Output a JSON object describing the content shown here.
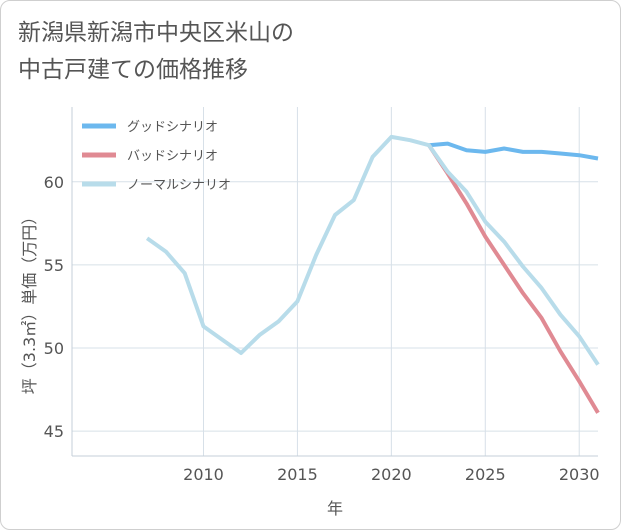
{
  "title_line1": "新潟県新潟市中央区米山の",
  "title_line2": "中古戸建ての価格推移",
  "chart_data": {
    "type": "line",
    "title": "新潟県新潟市中央区米山の中古戸建ての価格推移",
    "xlabel": "年",
    "ylabel": "坪（3.3㎡）単価（万円）",
    "xlim": [
      2003,
      2031
    ],
    "ylim": [
      43.5,
      64.5
    ],
    "xticks": [
      2010,
      2015,
      2020,
      2025,
      2030
    ],
    "yticks": [
      45,
      50,
      55,
      60
    ],
    "legend_position": "top-left",
    "series": [
      {
        "name": "グッドシナリオ",
        "color": "#6cb8ee",
        "x": [
          2022,
          2023,
          2024,
          2025,
          2026,
          2027,
          2028,
          2029,
          2030,
          2031
        ],
        "values": [
          62.2,
          62.3,
          61.9,
          61.8,
          62.0,
          61.8,
          61.8,
          61.7,
          61.6,
          61.4
        ]
      },
      {
        "name": "バッドシナリオ",
        "color": "#e08a93",
        "x": [
          2022,
          2023,
          2024,
          2025,
          2026,
          2027,
          2028,
          2029,
          2030,
          2031
        ],
        "values": [
          62.2,
          60.5,
          58.7,
          56.7,
          55.0,
          53.3,
          51.8,
          49.8,
          48.0,
          46.1
        ]
      },
      {
        "name": "ノーマルシナリオ",
        "color": "#b8dcea",
        "x": [
          2007,
          2008,
          2009,
          2010,
          2011,
          2012,
          2013,
          2014,
          2015,
          2016,
          2017,
          2018,
          2019,
          2020,
          2021,
          2022,
          2023,
          2024,
          2025,
          2026,
          2027,
          2028,
          2029,
          2030,
          2031
        ],
        "values": [
          56.6,
          55.8,
          54.5,
          51.3,
          50.5,
          49.7,
          50.8,
          51.6,
          52.8,
          55.6,
          58.0,
          58.9,
          61.5,
          62.7,
          62.5,
          62.2,
          60.6,
          59.4,
          57.6,
          56.4,
          54.9,
          53.6,
          52.0,
          50.7,
          49.0
        ]
      }
    ]
  }
}
